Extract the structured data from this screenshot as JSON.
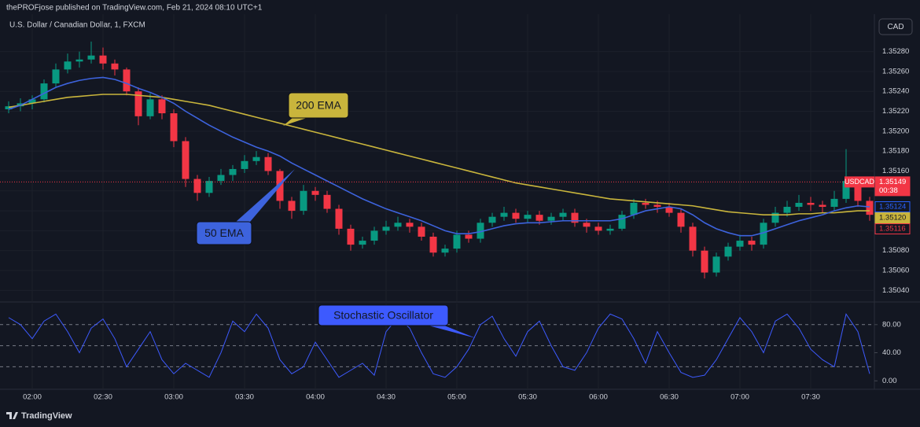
{
  "header": "thePROFjose published on TradingView.com, Feb 21, 2024 08:10 UTC+1",
  "footer": "TradingView",
  "chart_data": [
    {
      "type": "candlestick",
      "title": "U.S. Dollar / Canadian Dollar, 1, FXCM",
      "currency": "CAD",
      "categories": [
        null,
        null,
        "02:00",
        null,
        null,
        null,
        null,
        null,
        "02:30",
        null,
        null,
        null,
        null,
        null,
        "03:00",
        null,
        null,
        null,
        null,
        null,
        "03:30",
        null,
        null,
        null,
        null,
        null,
        "04:00",
        null,
        null,
        null,
        null,
        null,
        "04:30",
        null,
        null,
        null,
        null,
        null,
        "05:00",
        null,
        null,
        null,
        null,
        null,
        "05:30",
        null,
        null,
        null,
        null,
        null,
        "06:00",
        null,
        null,
        null,
        null,
        null,
        "06:30",
        null,
        null,
        null,
        null,
        null,
        "07:00",
        null,
        null,
        null,
        null,
        null,
        "07:30",
        null,
        null,
        null,
        null,
        null
      ],
      "open": [
        1.35222,
        1.35225,
        1.35228,
        1.35232,
        1.35248,
        1.35262,
        1.3527,
        1.35272,
        1.35276,
        1.35268,
        1.35262,
        1.3524,
        1.35215,
        1.35232,
        1.35218,
        1.3519,
        1.35152,
        1.35138,
        1.3515,
        1.35156,
        1.35162,
        1.3517,
        1.35174,
        1.3516,
        1.3513,
        1.3512,
        1.3514,
        1.35136,
        1.35122,
        1.35102,
        1.35086,
        1.3509,
        1.351,
        1.35104,
        1.35108,
        1.35104,
        1.35094,
        1.35078,
        1.35082,
        1.35096,
        1.35092,
        1.35108,
        1.35114,
        1.35118,
        1.35112,
        1.35116,
        1.3511,
        1.35114,
        1.35118,
        1.35108,
        1.35104,
        1.351,
        1.35102,
        1.35116,
        1.35128,
        1.35126,
        1.35124,
        1.35118,
        1.35104,
        1.3508,
        1.35058,
        1.35074,
        1.35084,
        1.3509,
        1.35086,
        1.35108,
        1.35118,
        1.35124,
        1.35128,
        1.35126,
        1.35124,
        1.35132,
        1.3515,
        1.3513
      ],
      "high": [
        1.3523,
        1.35233,
        1.35236,
        1.35252,
        1.35268,
        1.35278,
        1.3528,
        1.3529,
        1.35284,
        1.35272,
        1.35264,
        1.35244,
        1.35238,
        1.35236,
        1.35222,
        1.35194,
        1.35156,
        1.35154,
        1.35162,
        1.35166,
        1.35176,
        1.3518,
        1.35178,
        1.35162,
        1.35134,
        1.35146,
        1.35144,
        1.3514,
        1.35126,
        1.35106,
        1.35094,
        1.35104,
        1.3511,
        1.35114,
        1.35112,
        1.35108,
        1.35098,
        1.35086,
        1.351,
        1.351,
        1.35112,
        1.35118,
        1.35124,
        1.35122,
        1.3512,
        1.3512,
        1.35118,
        1.35122,
        1.35122,
        1.35112,
        1.35108,
        1.35106,
        1.3512,
        1.35132,
        1.35132,
        1.3513,
        1.35128,
        1.35122,
        1.35108,
        1.35084,
        1.35078,
        1.35088,
        1.35096,
        1.35094,
        1.35112,
        1.35124,
        1.3513,
        1.35136,
        1.35134,
        1.3513,
        1.3514,
        1.35182,
        1.35154,
        1.35134
      ],
      "low": [
        1.35218,
        1.3522,
        1.35222,
        1.35229,
        1.35244,
        1.35258,
        1.35264,
        1.35268,
        1.35262,
        1.35256,
        1.35236,
        1.35206,
        1.35212,
        1.35212,
        1.35184,
        1.35144,
        1.3513,
        1.35134,
        1.35146,
        1.3515,
        1.35158,
        1.35166,
        1.35156,
        1.35122,
        1.35112,
        1.35116,
        1.3513,
        1.35118,
        1.35096,
        1.3508,
        1.35082,
        1.35086,
        1.35096,
        1.351,
        1.35098,
        1.3509,
        1.35074,
        1.35074,
        1.35078,
        1.35088,
        1.35088,
        1.35104,
        1.3511,
        1.35108,
        1.35108,
        1.35106,
        1.35106,
        1.3511,
        1.35104,
        1.35098,
        1.35096,
        1.35096,
        1.351,
        1.35112,
        1.35122,
        1.35118,
        1.35114,
        1.35098,
        1.35074,
        1.35052,
        1.35054,
        1.3507,
        1.3508,
        1.3508,
        1.35082,
        1.35104,
        1.35114,
        1.3512,
        1.3512,
        1.35118,
        1.3512,
        1.35128,
        1.35124,
        1.3511
      ],
      "close": [
        1.35225,
        1.35228,
        1.35232,
        1.35248,
        1.35262,
        1.3527,
        1.35272,
        1.35276,
        1.35268,
        1.35262,
        1.3524,
        1.35215,
        1.35232,
        1.35218,
        1.3519,
        1.35152,
        1.35138,
        1.3515,
        1.35156,
        1.35162,
        1.3517,
        1.35174,
        1.3516,
        1.3513,
        1.3512,
        1.3514,
        1.35136,
        1.35122,
        1.35102,
        1.35086,
        1.3509,
        1.351,
        1.35104,
        1.35108,
        1.35104,
        1.35094,
        1.35078,
        1.35082,
        1.35096,
        1.35092,
        1.35108,
        1.35114,
        1.35118,
        1.35112,
        1.35116,
        1.3511,
        1.35114,
        1.35118,
        1.35108,
        1.35104,
        1.351,
        1.35102,
        1.35116,
        1.35128,
        1.35126,
        1.35124,
        1.35118,
        1.35104,
        1.3508,
        1.35058,
        1.35074,
        1.35084,
        1.3509,
        1.35086,
        1.35108,
        1.35118,
        1.35124,
        1.35128,
        1.35126,
        1.35124,
        1.35132,
        1.3515,
        1.3513,
        1.35116
      ],
      "up_color": "#089981",
      "down_color": "#f23645",
      "series": [
        {
          "name": "200 EMA",
          "color": "#c9b53c",
          "values": [
            1.35224,
            1.35226,
            1.35228,
            1.3523,
            1.35232,
            1.35234,
            1.35235,
            1.35236,
            1.35237,
            1.35237,
            1.35237,
            1.35236,
            1.35235,
            1.35234,
            1.35232,
            1.3523,
            1.35228,
            1.35226,
            1.35223,
            1.3522,
            1.35217,
            1.35214,
            1.35211,
            1.35208,
            1.35205,
            1.35202,
            1.35199,
            1.35196,
            1.35193,
            1.3519,
            1.35187,
            1.35184,
            1.35181,
            1.35178,
            1.35175,
            1.35172,
            1.35169,
            1.35166,
            1.35163,
            1.3516,
            1.35157,
            1.35154,
            1.35151,
            1.35148,
            1.35146,
            1.35144,
            1.35142,
            1.3514,
            1.35138,
            1.35136,
            1.35134,
            1.35132,
            1.35131,
            1.3513,
            1.35129,
            1.35128,
            1.35127,
            1.35126,
            1.35125,
            1.35123,
            1.35121,
            1.35119,
            1.35118,
            1.35117,
            1.35116,
            1.35116,
            1.35116,
            1.35117,
            1.35117,
            1.35118,
            1.35118,
            1.35119,
            1.3512,
            1.3512
          ]
        },
        {
          "name": "50 EMA",
          "color": "#3d63dd",
          "values": [
            1.35222,
            1.35226,
            1.35232,
            1.35238,
            1.35244,
            1.35248,
            1.35251,
            1.35253,
            1.35254,
            1.35252,
            1.35248,
            1.35243,
            1.35239,
            1.35234,
            1.35228,
            1.3522,
            1.35213,
            1.35206,
            1.352,
            1.35194,
            1.35189,
            1.35184,
            1.3518,
            1.35175,
            1.35168,
            1.35162,
            1.35156,
            1.3515,
            1.35144,
            1.35138,
            1.35132,
            1.35127,
            1.35122,
            1.35118,
            1.35114,
            1.3511,
            1.35105,
            1.351,
            1.35097,
            1.35097,
            1.35099,
            1.35102,
            1.35105,
            1.35107,
            1.35108,
            1.35108,
            1.35109,
            1.3511,
            1.3511,
            1.3511,
            1.3511,
            1.3511,
            1.35112,
            1.35116,
            1.3512,
            1.35122,
            1.35124,
            1.35122,
            1.35116,
            1.35108,
            1.35102,
            1.35098,
            1.35095,
            1.35095,
            1.35098,
            1.35102,
            1.35106,
            1.3511,
            1.35113,
            1.35116,
            1.3512,
            1.35123,
            1.35125,
            1.35124
          ]
        }
      ],
      "ylim": [
        1.3503,
        1.35316
      ],
      "yticks": [
        {
          "value": 1.3504,
          "label": "1.35040"
        },
        {
          "value": 1.3506,
          "label": "1.35060"
        },
        {
          "value": 1.3508,
          "label": "1.35080"
        },
        {
          "value": 1.351,
          "label": "1.35100"
        },
        {
          "value": 1.3512,
          "label": "1.35120"
        },
        {
          "value": 1.3514,
          "label": "1.35140"
        },
        {
          "value": 1.3516,
          "label": "1.35160"
        },
        {
          "value": 1.3518,
          "label": "1.35180"
        },
        {
          "value": 1.352,
          "label": "1.35200"
        },
        {
          "value": 1.3522,
          "label": "1.35220"
        },
        {
          "value": 1.3524,
          "label": "1.35240"
        },
        {
          "value": 1.3526,
          "label": "1.35260"
        },
        {
          "value": 1.3528,
          "label": "1.35280"
        }
      ],
      "grid": true,
      "price_tags": [
        {
          "name": "USDCAD",
          "value": {
            "value": 1.35149,
            "label": "1.35149"
          },
          "countdown": "00:38",
          "color": "#f23645",
          "outline": false
        },
        {
          "value": {
            "value": 1.35124,
            "label": "1.35124"
          },
          "color": "#2962ff",
          "outline": true
        },
        {
          "value": {
            "value": 1.3512,
            "label": "1.35120"
          },
          "color": "#c9b53c",
          "outline": false
        },
        {
          "value": {
            "value": 1.35116,
            "label": "1.35116"
          },
          "color": "#f23645",
          "outline": true
        }
      ]
    },
    {
      "type": "line",
      "series": [
        {
          "name": "Stochastic Oscillator",
          "color": "#3d5afe",
          "values": [
            90,
            80,
            60,
            85,
            95,
            70,
            40,
            75,
            88,
            60,
            20,
            45,
            70,
            30,
            10,
            25,
            15,
            5,
            40,
            85,
            70,
            95,
            75,
            30,
            10,
            20,
            55,
            30,
            5,
            15,
            25,
            8,
            70,
            90,
            75,
            40,
            10,
            5,
            20,
            45,
            80,
            92,
            60,
            35,
            70,
            85,
            50,
            20,
            15,
            40,
            75,
            95,
            88,
            60,
            25,
            70,
            40,
            12,
            5,
            8,
            30,
            60,
            90,
            70,
            40,
            85,
            95,
            75,
            45,
            30,
            20,
            95,
            70,
            10
          ]
        }
      ],
      "ylim": [
        -12,
        110
      ],
      "yticks": [
        {
          "value": 80,
          "label": "80.00"
        },
        {
          "value": 40,
          "label": "40.00"
        },
        {
          "value": 0,
          "label": "0.00"
        }
      ],
      "bands": [
        80,
        50,
        20
      ]
    }
  ]
}
